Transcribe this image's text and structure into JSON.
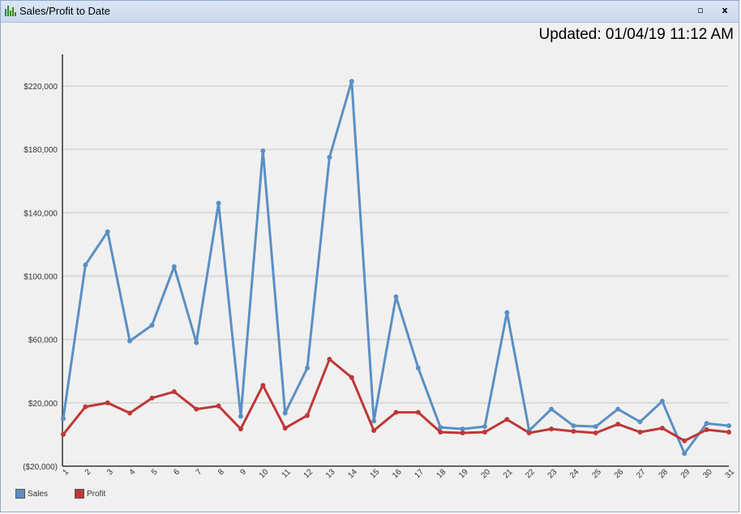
{
  "window": {
    "title": "Sales/Profit to Date",
    "restore_label": "▫",
    "close_label": "x"
  },
  "updated": "Updated: 01/04/19 11:12 AM",
  "colors": {
    "sales": "#5b8fc2",
    "profit": "#bd3836",
    "gridline": "#d9d9d9",
    "axis": "#333333"
  },
  "chart_data": {
    "type": "line",
    "x": [
      1,
      2,
      3,
      4,
      5,
      6,
      7,
      8,
      9,
      10,
      11,
      12,
      13,
      14,
      15,
      16,
      17,
      18,
      19,
      20,
      21,
      22,
      23,
      24,
      25,
      26,
      27,
      28,
      29,
      30,
      31
    ],
    "series": [
      {
        "name": "Sales",
        "values": [
          10000,
          107000,
          128000,
          59000,
          69000,
          106000,
          58000,
          146000,
          11500,
          179000,
          13500,
          42000,
          175000,
          223000,
          8500,
          87000,
          42000,
          4500,
          3500,
          5000,
          77000,
          2500,
          16000,
          5500,
          5000,
          16000,
          8000,
          21000,
          -12000,
          7000,
          5500
        ]
      },
      {
        "name": "Profit",
        "values": [
          0,
          17500,
          20000,
          13500,
          23000,
          27000,
          16000,
          18000,
          3500,
          31000,
          4000,
          12000,
          47500,
          36000,
          2500,
          14000,
          14000,
          1500,
          1000,
          1500,
          9500,
          1000,
          3500,
          2000,
          1000,
          6500,
          1500,
          4000,
          -4000,
          3000,
          1500
        ]
      }
    ],
    "yticks": [
      -20000,
      20000,
      60000,
      100000,
      140000,
      180000,
      220000
    ],
    "ytick_labels": [
      "($20,000)",
      "$20,000",
      "$60,000",
      "$100,000",
      "$140,000",
      "$180,000",
      "$220,000"
    ],
    "xtick_labels": [
      "1",
      "2",
      "3",
      "4",
      "5",
      "6",
      "7",
      "8",
      "9",
      "10",
      "11",
      "12",
      "13",
      "14",
      "15",
      "16",
      "17",
      "18",
      "19",
      "20",
      "21",
      "22",
      "23",
      "24",
      "25",
      "26",
      "27",
      "28",
      "29",
      "30",
      "31"
    ],
    "ylim": [
      -20000,
      240000
    ],
    "legend": "bottom-left",
    "grid": true
  }
}
